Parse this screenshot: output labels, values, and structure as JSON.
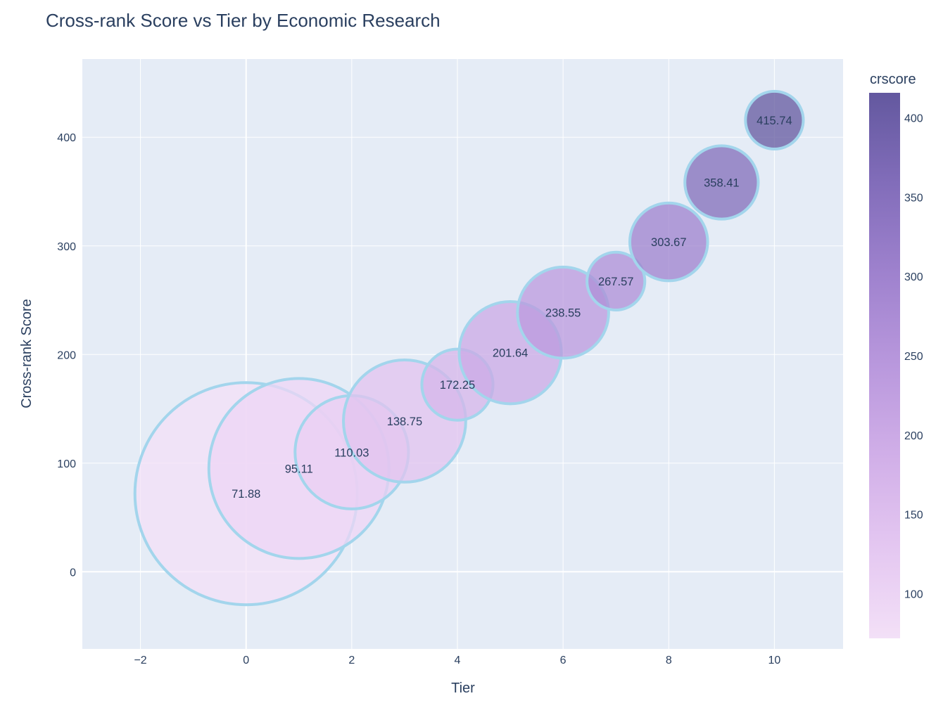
{
  "chart_data": {
    "type": "scatter",
    "title": "Cross-rank Score vs Tier by Economic Research",
    "xlabel": "Tier",
    "ylabel": "Cross-rank Score",
    "xlim": [
      -3.1,
      11.3
    ],
    "ylim": [
      -71,
      472
    ],
    "x_ticks": [
      -2,
      0,
      2,
      4,
      6,
      8,
      10
    ],
    "x_tick_labels": [
      "−2",
      "0",
      "2",
      "4",
      "6",
      "8",
      "10"
    ],
    "y_ticks": [
      0,
      100,
      200,
      300,
      400
    ],
    "y_tick_labels": [
      "0",
      "100",
      "200",
      "300",
      "400"
    ],
    "grid": true,
    "colorbar": {
      "title": "crscore",
      "range": [
        71.88,
        415.74
      ],
      "ticks": [
        100,
        150,
        200,
        250,
        300,
        350,
        400
      ],
      "tick_labels": [
        "100",
        "150",
        "200",
        "250",
        "300",
        "350",
        "400"
      ],
      "colors": [
        "#f3e0f7",
        "#e4c7f1",
        "#d1afe8",
        "#b998dd",
        "#9f82ce",
        "#826dba",
        "#63589f"
      ]
    },
    "marker_line_color": "#a3d5ec",
    "plot_bg": "#e5ecf6",
    "points": [
      {
        "x": 0,
        "y": 71.88,
        "label": "71.88",
        "size": 100
      },
      {
        "x": 1,
        "y": 95.11,
        "label": "95.11",
        "size": 81
      },
      {
        "x": 2,
        "y": 110.03,
        "label": "110.03",
        "size": 51
      },
      {
        "x": 3,
        "y": 138.75,
        "label": "138.75",
        "size": 55
      },
      {
        "x": 4,
        "y": 172.25,
        "label": "172.25",
        "size": 32
      },
      {
        "x": 5,
        "y": 201.64,
        "label": "201.64",
        "size": 46
      },
      {
        "x": 6,
        "y": 238.55,
        "label": "238.55",
        "size": 41
      },
      {
        "x": 7,
        "y": 267.57,
        "label": "267.57",
        "size": 26
      },
      {
        "x": 8,
        "y": 303.67,
        "label": "303.67",
        "size": 35
      },
      {
        "x": 9,
        "y": 358.41,
        "label": "358.41",
        "size": 33
      },
      {
        "x": 10,
        "y": 415.74,
        "label": "415.74",
        "size": 26
      }
    ]
  }
}
